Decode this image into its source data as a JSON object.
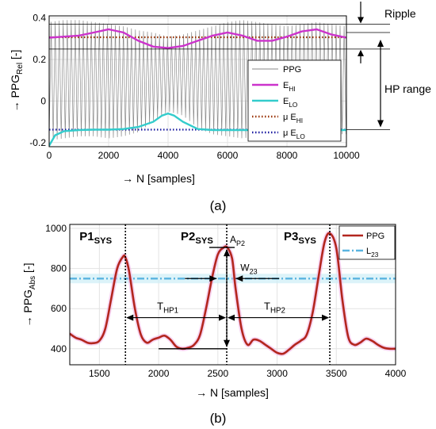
{
  "chart_data": [
    {
      "panel": "(a)",
      "type": "line",
      "xlabel_prefix": "→",
      "xlabel": "N [samples]",
      "ylabel_prefix": "→",
      "ylabel_main": "PPG",
      "ylabel_sub": "Rel",
      "ylabel_suffix": "[-]",
      "xlim": [
        0,
        10000
      ],
      "ylim": [
        -0.22,
        0.41
      ],
      "xticks": [
        0,
        2000,
        4000,
        6000,
        8000,
        10000
      ],
      "yticks": [
        -0.2,
        0,
        0.2,
        0.4
      ],
      "ytick_labels": [
        "-0.2",
        "0",
        "0.2",
        "0.4"
      ],
      "grid": true,
      "legend_position": "center-right",
      "series": [
        {
          "name": "PPG",
          "sub": "",
          "color": "#8a8a8a",
          "style": "solid",
          "pulse_period": 135,
          "upper_env": {
            "x": [
              0,
              500,
              1000,
              1500,
              2000,
              2500,
              3000,
              3500,
              4000,
              4500,
              5000,
              5500,
              6000,
              6500,
              7000,
              7500,
              8000,
              8500,
              9000,
              9500,
              10000
            ],
            "y": [
              0.38,
              0.39,
              0.39,
              0.38,
              0.37,
              0.36,
              0.34,
              0.33,
              0.31,
              0.32,
              0.34,
              0.36,
              0.38,
              0.39,
              0.38,
              0.37,
              0.36,
              0.37,
              0.38,
              0.37,
              0.36
            ]
          },
          "lower_env": {
            "x": [
              0,
              500,
              1000,
              1500,
              2000,
              2500,
              3000,
              3500,
              4000,
              4500,
              5000,
              5500,
              6000,
              6500,
              7000,
              7500,
              8000,
              8500,
              9000,
              9500,
              10000
            ],
            "y": [
              -0.19,
              -0.18,
              -0.17,
              -0.17,
              -0.18,
              -0.17,
              -0.15,
              -0.1,
              -0.05,
              -0.07,
              -0.13,
              -0.16,
              -0.17,
              -0.18,
              -0.17,
              -0.17,
              -0.18,
              -0.17,
              -0.17,
              -0.16,
              -0.16
            ]
          }
        },
        {
          "name": "E",
          "sub": "HI",
          "color": "#cc33cc",
          "style": "solid",
          "x": [
            0,
            500,
            1000,
            1500,
            2000,
            2500,
            3000,
            3500,
            4000,
            4500,
            5000,
            5500,
            6000,
            6500,
            7000,
            7500,
            8000,
            8500,
            9000,
            9500,
            10000
          ],
          "y": [
            0.305,
            0.31,
            0.315,
            0.33,
            0.345,
            0.33,
            0.29,
            0.262,
            0.255,
            0.265,
            0.29,
            0.315,
            0.33,
            0.315,
            0.29,
            0.29,
            0.31,
            0.335,
            0.345,
            0.32,
            0.305
          ]
        },
        {
          "name": "E",
          "sub": "LO",
          "color": "#33cccc",
          "style": "solid",
          "x": [
            0,
            100,
            200,
            500,
            1000,
            1500,
            2000,
            2500,
            3000,
            3500,
            3800,
            4000,
            4200,
            4500,
            5000,
            5500,
            6000,
            6500,
            7000,
            7500,
            8000,
            8500,
            9000,
            9500,
            10000
          ],
          "y": [
            -0.215,
            -0.19,
            -0.165,
            -0.145,
            -0.14,
            -0.138,
            -0.138,
            -0.135,
            -0.125,
            -0.1,
            -0.07,
            -0.06,
            -0.07,
            -0.1,
            -0.135,
            -0.14,
            -0.14,
            -0.14,
            -0.14,
            -0.14,
            -0.142,
            -0.14,
            -0.14,
            -0.14,
            -0.14
          ]
        },
        {
          "name": "μ E",
          "sub": "HI",
          "color": "#993300",
          "style": "dotted",
          "value": 0.307
        },
        {
          "name": "μ E",
          "sub": "LO",
          "color": "#1a1aa0",
          "style": "dotted",
          "value": -0.138
        }
      ],
      "annotations": {
        "ripple": "Ripple",
        "hp_range": "HP range",
        "ripple_top": 0.37,
        "ripple_bottom": 0.25
      }
    },
    {
      "panel": "(b)",
      "type": "line",
      "xlabel_prefix": "→",
      "xlabel": "N [samples]",
      "ylabel_prefix": "→",
      "ylabel_main": "PPG",
      "ylabel_sub": "Abs",
      "ylabel_suffix": "[-]",
      "xlim": [
        1250,
        4000
      ],
      "ylim": [
        320,
        1020
      ],
      "xticks": [
        1500,
        2000,
        2500,
        3000,
        3500,
        4000
      ],
      "yticks": [
        400,
        600,
        800,
        1000
      ],
      "grid": true,
      "legend_position": "top-right",
      "series": [
        {
          "name": "PPG",
          "sub": "",
          "color": "#b3261e",
          "style": "solid",
          "x": [
            1250,
            1300,
            1350,
            1400,
            1450,
            1500,
            1550,
            1600,
            1650,
            1700,
            1720,
            1750,
            1800,
            1850,
            1900,
            1950,
            2000,
            2050,
            2100,
            2150,
            2200,
            2250,
            2300,
            2350,
            2400,
            2450,
            2500,
            2550,
            2580,
            2620,
            2650,
            2700,
            2750,
            2800,
            2850,
            2900,
            2950,
            3000,
            3050,
            3100,
            3150,
            3200,
            3250,
            3300,
            3350,
            3400,
            3445,
            3500,
            3550,
            3600,
            3650,
            3700,
            3750,
            3800,
            3850,
            3900,
            3950,
            4000
          ],
          "y": [
            475,
            455,
            445,
            430,
            428,
            440,
            500,
            650,
            800,
            860,
            855,
            790,
            600,
            470,
            430,
            445,
            455,
            465,
            445,
            410,
            400,
            405,
            420,
            470,
            600,
            750,
            870,
            905,
            905,
            850,
            700,
            500,
            420,
            445,
            440,
            420,
            400,
            380,
            375,
            395,
            420,
            440,
            470,
            580,
            760,
            930,
            975,
            900,
            650,
            460,
            420,
            430,
            450,
            440,
            420,
            405,
            400,
            400
          ]
        },
        {
          "name": "L",
          "sub": "23",
          "color": "#5ab4e0",
          "style": "dashdot",
          "value": 750
        }
      ],
      "peaks": [
        {
          "name": "P1",
          "sub": "SYS",
          "x": 1720
        },
        {
          "name": "P2",
          "sub": "SYS",
          "x": 2575
        },
        {
          "name": "P3",
          "sub": "SYS",
          "x": 3445
        }
      ],
      "annotations": {
        "amplitude": {
          "name": "A",
          "sub": "P2"
        },
        "width": {
          "name": "W",
          "sub": "23"
        },
        "period1": {
          "name": "T",
          "sub": "HP1"
        },
        "period2": {
          "name": "T",
          "sub": "HP2"
        }
      }
    }
  ],
  "panel_labels": [
    "(a)",
    "(b)"
  ]
}
